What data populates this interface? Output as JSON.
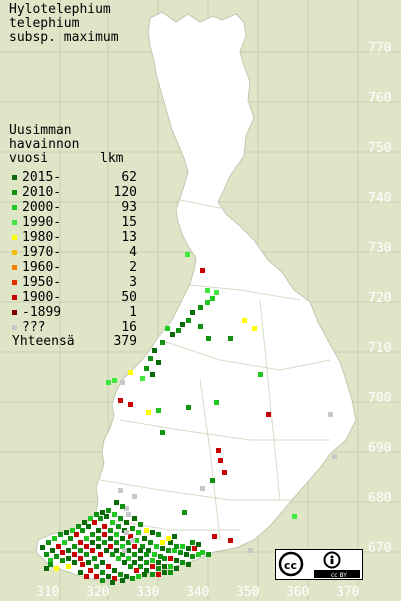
{
  "title": {
    "line1": "Hylotelephium",
    "line2": "telephium",
    "line3": "subsp. maximum"
  },
  "legend": {
    "heading1": "Uusimman",
    "heading2": "havainnon",
    "col_year": "vuosi",
    "col_count": "lkm",
    "rows": [
      {
        "label": "2015-",
        "count": "62",
        "color": "#0a6a0a"
      },
      {
        "label": "2010-",
        "count": "120",
        "color": "#119111"
      },
      {
        "label": "2000-",
        "count": "93",
        "color": "#22c822"
      },
      {
        "label": "1990-",
        "count": "15",
        "color": "#40e840"
      },
      {
        "label": "1980-",
        "count": "13",
        "color": "#ffff00"
      },
      {
        "label": "1970-",
        "count": "4",
        "color": "#f0c000"
      },
      {
        "label": "1960-",
        "count": "2",
        "color": "#f08000"
      },
      {
        "label": "1950-",
        "count": "3",
        "color": "#e03000"
      },
      {
        "label": "1900-",
        "count": "50",
        "color": "#c80000"
      },
      {
        "label": "-1899",
        "count": "1",
        "color": "#800000"
      },
      {
        "label": "???",
        "count": "16",
        "color": "#c8c8c8"
      }
    ],
    "total_label": "Yhteensä",
    "total_count": "379"
  },
  "axis": {
    "y_ticks": [
      "770",
      "760",
      "750",
      "740",
      "730",
      "720",
      "710",
      "700",
      "690",
      "680",
      "670"
    ],
    "x_ticks": [
      "310",
      "320",
      "330",
      "340",
      "350",
      "360",
      "370"
    ]
  },
  "license": {
    "text": "cc BY"
  },
  "colors": {
    "background": "#dfe6c8",
    "land": "#ffffff",
    "grid": "#c8cfb4"
  }
}
